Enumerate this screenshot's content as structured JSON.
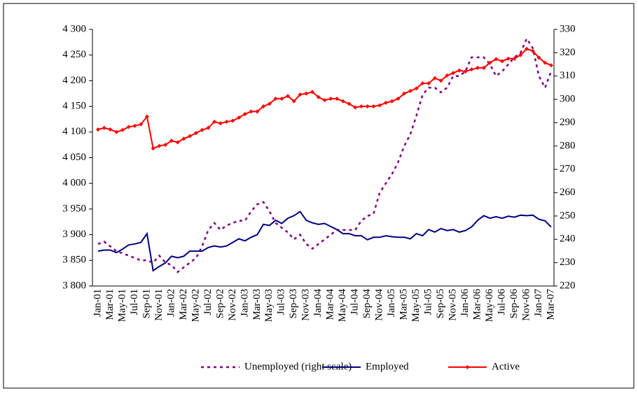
{
  "chart_data": {
    "type": "line",
    "categories": [
      "Jan-01",
      null,
      "Mar-01",
      null,
      "May-01",
      null,
      "Jul-01",
      null,
      "Sep-01",
      null,
      "Nov-01",
      null,
      "Jan-02",
      null,
      "Mar-02",
      null,
      "May-02",
      null,
      "Jul-02",
      null,
      "Sep-02",
      null,
      "Nov-02",
      null,
      "Jan-03",
      null,
      "Mar-03",
      null,
      "May-03",
      null,
      "Jul-03",
      null,
      "Sep-03",
      null,
      "Nov-03",
      null,
      "Jan-04",
      null,
      "Mar-04",
      null,
      "May-04",
      null,
      "Jul-04",
      null,
      "Sep-04",
      null,
      "Nov-04",
      null,
      "Jan-05",
      null,
      "Mar-05",
      null,
      "May-05",
      null,
      "Jul-05",
      null,
      "Sep-05",
      null,
      "Nov-05",
      null,
      "Jan-06",
      null,
      "Mar-06",
      null,
      "May-06",
      null,
      "Jul-06",
      null,
      "Sep-06",
      null,
      "Nov-06",
      null,
      "Jan-07",
      null,
      "Mar-07"
    ],
    "series": [
      {
        "name": "Unemployed (right scale)",
        "color": "#800080",
        "axis": "y2",
        "dashed": true,
        "values": [
          238,
          239,
          237,
          235,
          234,
          233,
          232,
          231,
          231,
          230,
          233,
          230,
          229,
          226,
          228,
          230,
          232,
          237,
          244,
          247,
          244,
          246,
          247,
          248,
          248,
          252,
          255,
          256,
          252,
          247,
          245,
          243,
          240,
          242,
          238,
          236,
          238,
          240,
          242,
          244,
          244,
          244,
          244,
          248,
          250,
          251,
          260,
          264,
          268,
          273,
          280,
          285,
          293,
          302,
          305,
          305,
          303,
          305,
          310,
          310,
          312,
          318,
          318,
          318,
          315,
          310,
          312,
          315,
          318,
          320,
          326,
          322,
          310,
          305,
          312
        ]
      },
      {
        "name": "Employed",
        "color": "#000080",
        "values": [
          3868,
          3870,
          3870,
          3865,
          3872,
          3880,
          3882,
          3885,
          3902,
          3830,
          3838,
          3845,
          3858,
          3855,
          3858,
          3868,
          3868,
          3868,
          3875,
          3878,
          3876,
          3878,
          3885,
          3892,
          3888,
          3895,
          3900,
          3920,
          3918,
          3928,
          3922,
          3932,
          3937,
          3945,
          3928,
          3923,
          3920,
          3922,
          3916,
          3910,
          3902,
          3902,
          3898,
          3898,
          3890,
          3895,
          3895,
          3898,
          3896,
          3895,
          3895,
          3892,
          3902,
          3898,
          3910,
          3905,
          3912,
          3908,
          3910,
          3905,
          3908,
          3915,
          3928,
          3937,
          3932,
          3935,
          3932,
          3936,
          3934,
          3938,
          3937,
          3938,
          3930,
          3927,
          3915
        ]
      },
      {
        "name": "Active",
        "color": "#ff0000",
        "markers": true,
        "values": [
          4105,
          4108,
          4105,
          4100,
          4104,
          4110,
          4112,
          4115,
          4130,
          4068,
          4073,
          4075,
          4083,
          4080,
          4087,
          4092,
          4098,
          4104,
          4108,
          4120,
          4117,
          4120,
          4122,
          4128,
          4135,
          4140,
          4140,
          4150,
          4155,
          4165,
          4165,
          4170,
          4160,
          4173,
          4175,
          4178,
          4168,
          4162,
          4165,
          4165,
          4160,
          4155,
          4148,
          4150,
          4150,
          4150,
          4152,
          4157,
          4160,
          4165,
          4175,
          4180,
          4185,
          4195,
          4195,
          4205,
          4200,
          4210,
          4215,
          4220,
          4218,
          4222,
          4225,
          4225,
          4235,
          4242,
          4238,
          4243,
          4243,
          4250,
          4262,
          4258,
          4245,
          4235,
          4230
        ]
      }
    ],
    "ylim": [
      3800,
      4300
    ],
    "yticks": [
      {
        "value": 3800,
        "label": "3 800"
      },
      {
        "value": 3850,
        "label": "3 850"
      },
      {
        "value": 3900,
        "label": "3 900"
      },
      {
        "value": 3950,
        "label": "3 950"
      },
      {
        "value": 4000,
        "label": "4 000"
      },
      {
        "value": 4050,
        "label": "4 050"
      },
      {
        "value": 4100,
        "label": "4 100"
      },
      {
        "value": 4150,
        "label": "4 150"
      },
      {
        "value": 4200,
        "label": "4 200"
      },
      {
        "value": 4250,
        "label": "4 250"
      },
      {
        "value": 4300,
        "label": "4 300"
      }
    ],
    "y2lim": [
      220,
      330
    ],
    "y2ticks": [
      220,
      230,
      240,
      250,
      260,
      270,
      280,
      290,
      300,
      310,
      320,
      330
    ],
    "legend": "bottom"
  }
}
